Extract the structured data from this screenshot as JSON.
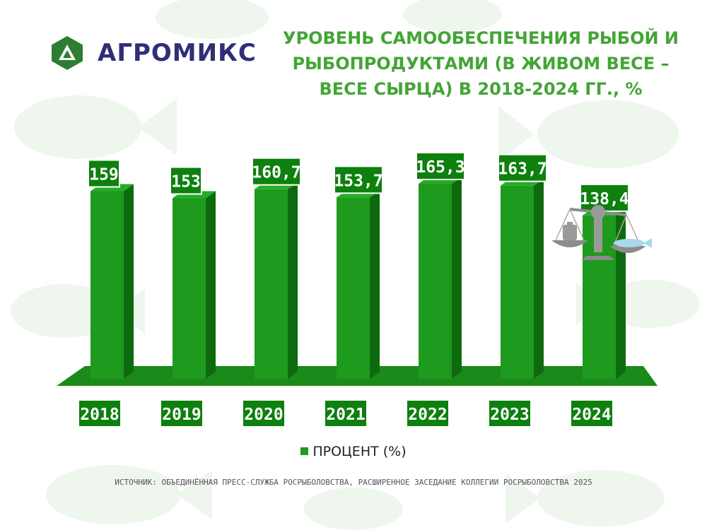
{
  "brand": {
    "name": "АГРОМИКС",
    "logo_color": "#2e7d32",
    "text_color": "#2f2f78"
  },
  "title": "УРОВЕНЬ САМООБЕСПЕЧЕНИЯ РЫБОЙ И РЫБОПРОДУКТАМИ (В ЖИВОМ ВЕСЕ – ВЕСЕ СЫРЦА) В 2018-2024 ГГ., %",
  "legend": {
    "label": "ПРОЦЕНТ (%)"
  },
  "source": "ИСТОЧНИК: ОБЪЕДИНЁННАЯ ПРЕСС-СЛУЖБА РОСРЫБОЛОВСТВА, РАСШИРЕННОЕ ЗАСЕДАНИЕ КОЛЛЕГИИ РОСРЫБОЛОВСТВА 2025",
  "decorations": {
    "icon": "scales-icon",
    "background": "fish-pattern"
  },
  "chart_data": {
    "type": "bar",
    "categories": [
      "2018",
      "2019",
      "2020",
      "2021",
      "2022",
      "2023",
      "2024"
    ],
    "values": [
      159,
      153,
      160.7,
      153.7,
      165.3,
      163.7,
      138.4
    ],
    "value_labels": [
      "159",
      "153",
      "160,7",
      "153,7",
      "165,3",
      "163,7",
      "138,4"
    ],
    "legend": "ПРОЦЕНТ (%)",
    "ylim": [
      0,
      175
    ],
    "grid": false,
    "legend_position": "bottom",
    "colors": {
      "bar_front": "#1e9a1e",
      "bar_side": "#0e6a0e",
      "floor": "#1a8a1a",
      "label_bg": "#0d800d",
      "label_text": "#ffffff"
    }
  }
}
